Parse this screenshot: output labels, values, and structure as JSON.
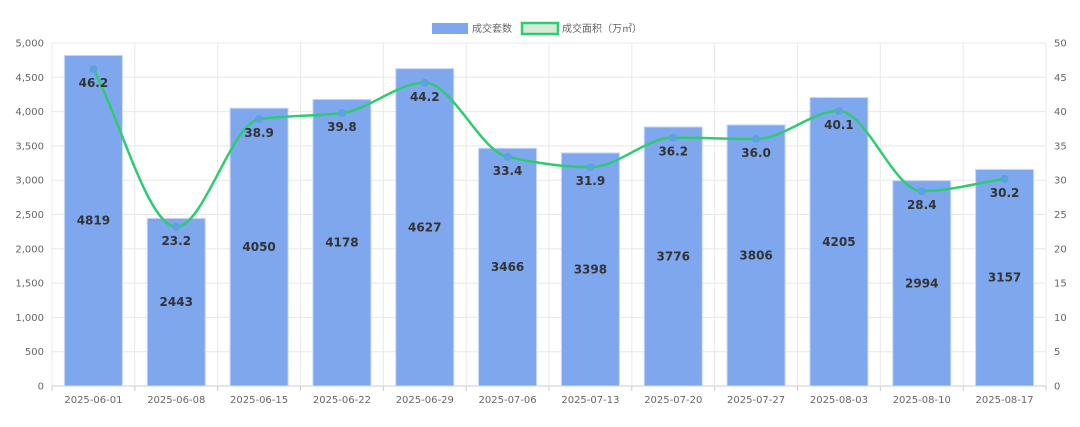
{
  "chart_data": {
    "type": "bar",
    "categories": [
      "2025-06-01",
      "2025-06-08",
      "2025-06-15",
      "2025-06-22",
      "2025-06-29",
      "2025-07-06",
      "2025-07-13",
      "2025-07-20",
      "2025-07-27",
      "2025-08-03",
      "2025-08-10",
      "2025-08-17"
    ],
    "series": [
      {
        "name": "成交套数",
        "type": "bar",
        "axis": "left",
        "color": "#7fa7ee",
        "values": [
          4819,
          2443,
          4050,
          4178,
          4627,
          3466,
          3398,
          3776,
          3806,
          4205,
          2994,
          3157
        ],
        "labels": [
          "4819",
          "2443",
          "4050",
          "4178",
          "4627",
          "3466",
          "3398",
          "3776",
          "3806",
          "4205",
          "2994",
          "3157"
        ]
      },
      {
        "name": "成交面积（万㎡）",
        "type": "line",
        "axis": "right",
        "color": "#2ecc71",
        "marker_color": "#5ba3dc",
        "values": [
          46.2,
          23.2,
          38.9,
          39.8,
          44.2,
          33.4,
          31.9,
          36.2,
          36.0,
          40.1,
          28.4,
          30.2
        ],
        "labels": [
          "46.2",
          "23.2",
          "38.9",
          "39.8",
          "44.2",
          "33.4",
          "31.9",
          "36.2",
          "36.0",
          "40.1",
          "28.4",
          "30.2"
        ]
      }
    ],
    "y_left": {
      "min": 0,
      "max": 5000,
      "ticks": [
        "0",
        "500",
        "1,000",
        "1,500",
        "2,000",
        "2,500",
        "3,000",
        "3,500",
        "4,000",
        "4,500",
        "5,000"
      ]
    },
    "y_right": {
      "min": 0,
      "max": 50,
      "ticks": [
        "0",
        "5",
        "10",
        "15",
        "20",
        "25",
        "30",
        "35",
        "40",
        "45",
        "50"
      ]
    },
    "title": "",
    "xlabel": "",
    "ylabel": "",
    "grid": true,
    "legend": "top-center"
  }
}
